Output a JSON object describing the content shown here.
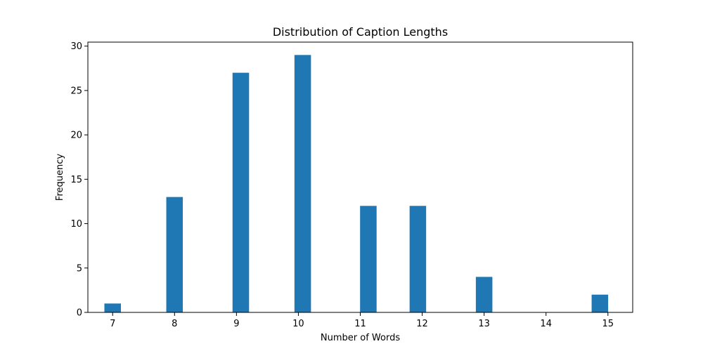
{
  "chart_data": {
    "type": "bar",
    "title": "Distribution of Caption Lengths",
    "xlabel": "Number of Words",
    "ylabel": "Frequency",
    "bars": [
      {
        "x": 7.0,
        "value": 1
      },
      {
        "x": 8.0,
        "value": 13
      },
      {
        "x": 9.07,
        "value": 27
      },
      {
        "x": 10.07,
        "value": 29
      },
      {
        "x": 11.13,
        "value": 12
      },
      {
        "x": 11.93,
        "value": 12
      },
      {
        "x": 13.0,
        "value": 4
      },
      {
        "x": 14.87,
        "value": 2
      }
    ],
    "bar_width": 0.267,
    "xticks": [
      7,
      8,
      9,
      10,
      11,
      12,
      13,
      14,
      15
    ],
    "yticks": [
      0,
      5,
      10,
      15,
      20,
      25,
      30
    ],
    "xlim": [
      6.6,
      15.4
    ],
    "ylim": [
      0,
      30.45
    ],
    "grid": false,
    "bar_color": "#1f77b4"
  }
}
